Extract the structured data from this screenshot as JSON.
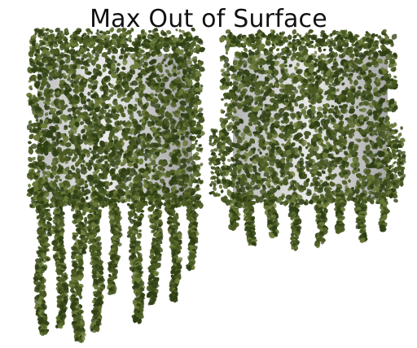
{
  "title": "Max Out of Surface",
  "panels": [
    {
      "name": "left",
      "style": "drooping-vines"
    },
    {
      "name": "right",
      "style": "contained-vines"
    }
  ],
  "colors": {
    "background": "#ffffff",
    "leaf_dark": "#2f3f14",
    "leaf_mid": "#4a5a22",
    "leaf_light": "#6a7a38",
    "box_light": "#e6e6e6",
    "box_dark": "#a9a9a9",
    "title": "#111111"
  }
}
